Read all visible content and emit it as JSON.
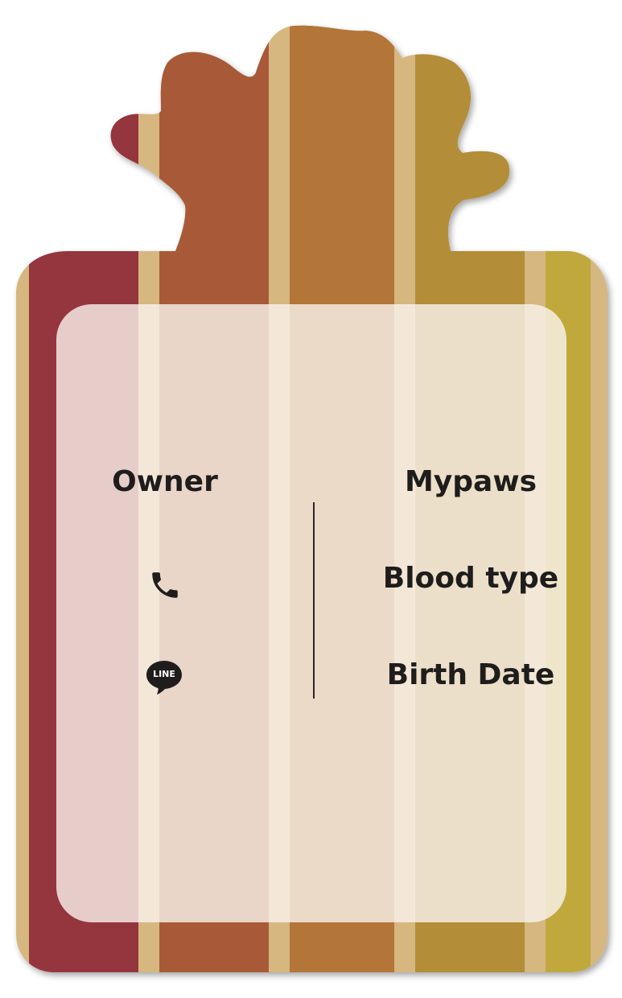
{
  "tag": {
    "stripe_colors": [
      "#95363c",
      "#a85a38",
      "#b37438",
      "#b38d38",
      "#c0a83e"
    ],
    "separator_color": "#d6b780"
  },
  "owner": {
    "label": "Owner",
    "phone_icon": "phone-icon",
    "line_icon": "line-app-icon",
    "line_text": "LINE"
  },
  "pet": {
    "name": "Mypaws",
    "blood_type_label": "Blood type",
    "birth_date_label": "Birth Date"
  }
}
